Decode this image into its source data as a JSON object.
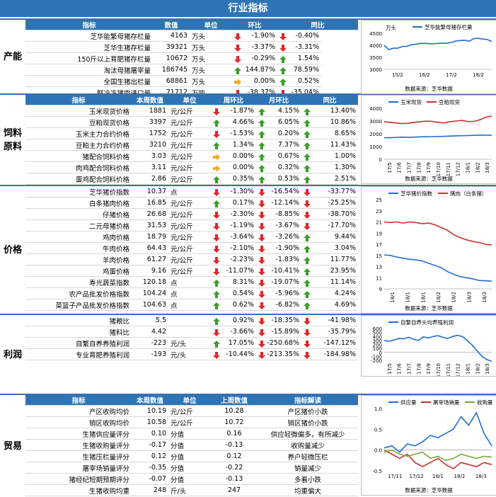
{
  "title": "行业指标",
  "sections": [
    {
      "key": "capacity",
      "label": "产能",
      "headers": [
        "指标",
        "数值",
        "单位",
        "环比",
        "同比"
      ],
      "rows": [
        {
          "name": "芝华能繁母猪存栏量",
          "value": "4163",
          "unit": "万头",
          "c1": "-1.90%",
          "a1": "down",
          "c2": "-0.40%",
          "a2": "down"
        },
        {
          "name": "芝华生猪存栏量",
          "value": "39321",
          "unit": "万头",
          "c1": "-3.37%",
          "a1": "down",
          "c2": "-3.31%",
          "a2": "down"
        },
        {
          "name": "150斤以上育肥猪存栏量",
          "value": "10672",
          "unit": "万头",
          "c1": "-0.29%",
          "a1": "down",
          "c2": "1.54%",
          "a2": "up"
        },
        {
          "name": "淘汰母猪屠宰量",
          "value": "186745",
          "unit": "万头",
          "c1": "144.87%",
          "a1": "up",
          "c2": "78.59%",
          "a2": "up"
        },
        {
          "name": "全国生猪出栏量",
          "value": "68861",
          "unit": "万头",
          "c1": "0.00%",
          "a1": "flat",
          "c2": "0.52%",
          "a2": "up"
        },
        {
          "name": "鲜冷冻猪肉进口量",
          "value": "71712",
          "unit": "万吨",
          "c1": "-38.37%",
          "a1": "down",
          "c2": "-35.04%",
          "a2": "down"
        }
      ]
    },
    {
      "key": "feed",
      "label": "饲料\n原料",
      "headers": [
        "指标",
        "本周数值",
        "单位",
        "周环比",
        "月环比",
        "同比"
      ],
      "rows": [
        {
          "name": "玉米现货价格",
          "value": "1881",
          "unit": "元/公斤",
          "c1": "-1.87%",
          "a1": "down",
          "c2": "4.15%",
          "a2": "up",
          "c3": "13.40%",
          "a3": "up"
        },
        {
          "name": "豆粕现货价格",
          "value": "3397",
          "unit": "元/公斤",
          "c1": "4.66%",
          "a1": "up",
          "c2": "6.05%",
          "a2": "up",
          "c3": "10.86%",
          "a3": "up"
        },
        {
          "name": "玉米主力合约价格",
          "value": "1752",
          "unit": "元/公斤",
          "c1": "-1.53%",
          "a1": "down",
          "c2": "0.20%",
          "a2": "up",
          "c3": "8.65%",
          "a3": "up"
        },
        {
          "name": "豆粕主力合约价格",
          "value": "3210",
          "unit": "元/公斤",
          "c1": "1.34%",
          "a1": "up",
          "c2": "7.37%",
          "a2": "up",
          "c3": "11.43%",
          "a3": "up"
        },
        {
          "name": "猪配合饲料价格",
          "value": "3.03",
          "unit": "元/公斤",
          "c1": "0.00%",
          "a1": "flat",
          "c2": "0.67%",
          "a2": "up",
          "c3": "1.00%",
          "a3": "up"
        },
        {
          "name": "肉鸡配合饲料价格",
          "value": "3.11",
          "unit": "元/公斤",
          "c1": "0.00%",
          "a1": "flat",
          "c2": "0.32%",
          "a2": "up",
          "c3": "1.30%",
          "a3": "up"
        },
        {
          "name": "蛋鸡配合饲料价格",
          "value": "2.86",
          "unit": "元/公斤",
          "c1": "0.35%",
          "a1": "up",
          "c2": "0.53%",
          "a2": "up",
          "c3": "2.51%",
          "a3": "up"
        }
      ]
    },
    {
      "key": "price",
      "label": "价格",
      "rows": [
        {
          "name": "芝华猪价指数",
          "value": "10.37",
          "unit": "点",
          "c1": "-1.30%",
          "a1": "down",
          "c2": "-16.54%",
          "a2": "down",
          "c3": "-33.77%",
          "a3": "down"
        },
        {
          "name": "白条猪肉价格",
          "value": "16.85",
          "unit": "元/公斤",
          "c1": "0.17%",
          "a1": "up",
          "c2": "-12.14%",
          "a2": "down",
          "c3": "-25.25%",
          "a3": "down"
        },
        {
          "name": "仔猪价格",
          "value": "26.68",
          "unit": "元/公斤",
          "c1": "-2.30%",
          "a1": "down",
          "c2": "-8.85%",
          "a2": "down",
          "c3": "-38.70%",
          "a3": "down"
        },
        {
          "name": "二元母猪价格",
          "value": "31.53",
          "unit": "元/公斤",
          "c1": "-1.19%",
          "a1": "down",
          "c2": "-3.67%",
          "a2": "down",
          "c3": "-17.70%",
          "a3": "down"
        },
        {
          "name": "鸡肉价格",
          "value": "18.79",
          "unit": "元/公斤",
          "c1": "-3.64%",
          "a1": "down",
          "c2": "-3.26%",
          "a2": "down",
          "c3": "9.44%",
          "a3": "up"
        },
        {
          "name": "牛肉价格",
          "value": "64.43",
          "unit": "元/公斤",
          "c1": "-2.10%",
          "a1": "down",
          "c2": "-1.90%",
          "a2": "down",
          "c3": "3.04%",
          "a3": "up"
        },
        {
          "name": "羊肉价格",
          "value": "61.27",
          "unit": "元/公斤",
          "c1": "-2.23%",
          "a1": "down",
          "c2": "-1.83%",
          "a2": "down",
          "c3": "11.77%",
          "a3": "up"
        },
        {
          "name": "鸡蛋价格",
          "value": "9.16",
          "unit": "元/公斤",
          "c1": "-11.07%",
          "a1": "down",
          "c2": "-10.41%",
          "a2": "down",
          "c3": "23.95%",
          "a3": "up"
        },
        {
          "name": "寿光蔬菜指数",
          "value": "120.18",
          "unit": "点",
          "c1": "8.31%",
          "a1": "up",
          "c2": "-19.07%",
          "a2": "down",
          "c3": "11.14%",
          "a3": "up"
        },
        {
          "name": "农产品批发价格指数",
          "value": "104.24",
          "unit": "点",
          "c1": "0.54%",
          "a1": "up",
          "c2": "-5.96%",
          "a2": "down",
          "c3": "4.24%",
          "a3": "up"
        },
        {
          "name": "菜篮子产品批发价格指数",
          "value": "104.63",
          "unit": "点",
          "c1": "0.62%",
          "a1": "up",
          "c2": "-6.82%",
          "a2": "down",
          "c3": "4.69%",
          "a3": "up"
        }
      ]
    },
    {
      "key": "profit",
      "label": "利润",
      "rows": [
        {
          "name": "猪粮比",
          "value": "5.5",
          "unit": "",
          "c1": "0.92%",
          "a1": "up",
          "c2": "-18.35%",
          "a2": "down",
          "c3": "-41.98%",
          "a3": "down"
        },
        {
          "name": "猪料比",
          "value": "4.42",
          "unit": "",
          "c1": "-3.66%",
          "a1": "down",
          "c2": "-15.89%",
          "a2": "down",
          "c3": "-35.79%",
          "a3": "down"
        },
        {
          "name": "自繁自养养殖利润",
          "value": "-223",
          "unit": "元/头",
          "c1": "17.05%",
          "a1": "up",
          "c2": "-250.68%",
          "a2": "down",
          "c3": "-147.12%",
          "a3": "down"
        },
        {
          "name": "专业育肥养殖利润",
          "value": "-193",
          "unit": "元/头",
          "c1": "-10.44%",
          "a1": "down",
          "c2": "-213.35%",
          "a2": "down",
          "c3": "-184.98%",
          "a3": "down"
        }
      ]
    },
    {
      "key": "trade",
      "label": "贸易",
      "headers": [
        "指标",
        "本周数值",
        "单位",
        "上周数值",
        "指标解读"
      ],
      "rows": [
        {
          "name": "产区收购均价",
          "value": "10.19",
          "unit": "元/公斤",
          "prev": "10.28",
          "note": "产区猪价小跌"
        },
        {
          "name": "销区收购均价",
          "value": "10.58",
          "unit": "元/公斤",
          "prev": "10.72",
          "note": "销区猪价小跌"
        },
        {
          "name": "生猪供应量评分",
          "value": "0.10",
          "unit": "分值",
          "prev": "0.16",
          "note": "供应轻微偏多，有所减少"
        },
        {
          "name": "生猪收购量评分",
          "value": "-0.17",
          "unit": "分值",
          "prev": "-0.13",
          "note": "收购量减少"
        },
        {
          "name": "生猪压栏量评分",
          "value": "0.12",
          "unit": "分值",
          "prev": "0.12",
          "note": "养户轻微压栏"
        },
        {
          "name": "屠宰场销量评分",
          "value": "-0.35",
          "unit": "分值",
          "prev": "-0.22",
          "note": "销量减少"
        },
        {
          "name": "猪经纪短期预期评分",
          "value": "-0.07",
          "unit": "分值",
          "prev": "-0.13",
          "note": "多看小跌"
        },
        {
          "name": "生猪收购均重",
          "value": "248",
          "unit": "斤/头",
          "prev": "247",
          "note": "均重偏大"
        }
      ]
    }
  ],
  "colors": {
    "header": "#2e74b5",
    "up": "#3a9d2c",
    "down": "#e0262a",
    "flat": "#f5a623",
    "blue": "#1f6ed4",
    "red": "#c9302c",
    "green": "#7aa53a"
  },
  "chart_data": [
    {
      "type": "line",
      "legend": [
        "芝华能繁母猪存栏量"
      ],
      "ylabel": "万头",
      "ylim": [
        3000,
        4500
      ],
      "yticks": [
        "3000",
        "3500",
        "4000",
        "4500"
      ],
      "xticks": [
        "15/2",
        "16/2",
        "17/2",
        "18/2"
      ],
      "source": "数据来源：芝华数据",
      "series": [
        {
          "name": "芝华能繁母猪存栏量",
          "values": [
            4000,
            3820,
            3880,
            3880,
            3950,
            3960,
            4020,
            4040,
            4080,
            4080,
            4070,
            4060,
            4080,
            4090,
            4090,
            4120,
            4180,
            4200,
            4210,
            4170,
            4280,
            4290,
            4260,
            4240,
            4163
          ]
        }
      ]
    },
    {
      "type": "line",
      "legend": [
        "玉米现货",
        "豆粕现货"
      ],
      "ylim": [
        0,
        4000
      ],
      "yticks": [
        "0",
        "1000",
        "2000",
        "3000",
        "4000"
      ],
      "xticks": [
        "17/5",
        "17/6",
        "17/7",
        "17/8",
        "17/9",
        "17/10",
        "17/11",
        "17/12",
        "18/1",
        "18/2",
        "18/3"
      ],
      "source": "数据来源：芝华数据",
      "series": [
        {
          "name": "玉米现货",
          "values": [
            1700,
            1690,
            1720,
            1740,
            1730,
            1740,
            1760,
            1770,
            1780,
            1790,
            1800,
            1820,
            1840,
            1850,
            1860,
            1880,
            1900,
            1890,
            1881
          ]
        },
        {
          "name": "豆粕现货",
          "values": [
            2950,
            2900,
            2850,
            2800,
            2820,
            2900,
            2950,
            3000,
            2980,
            2900,
            2850,
            2950,
            3000,
            3050,
            2960,
            2970,
            3100,
            3300,
            3397
          ]
        }
      ]
    },
    {
      "type": "line",
      "legend": [
        "芝华猪价指数",
        "猪肉（白条猪）"
      ],
      "ylim": [
        9,
        25
      ],
      "yticks": [
        "9",
        "11",
        "13",
        "15",
        "17",
        "19",
        "21",
        "23",
        "25"
      ],
      "xticks": [
        "18/1",
        "18/1",
        "18/1",
        "18/2",
        "18/2",
        "18/3",
        "18/3"
      ],
      "source": "数据来源：芝华数据",
      "series": [
        {
          "name": "芝华猪价指数",
          "values": [
            15.1,
            15.0,
            14.7,
            14.5,
            14.3,
            14.2,
            14.0,
            13.6,
            13.2,
            12.8,
            12.1,
            11.6,
            11.2,
            11.0,
            10.8,
            10.5,
            10.45,
            10.37
          ]
        },
        {
          "name": "猪肉（白条猪）",
          "values": [
            21.0,
            20.9,
            21.0,
            20.8,
            21.0,
            20.9,
            20.7,
            20.8,
            20.5,
            20.0,
            19.5,
            18.7,
            18.2,
            17.8,
            17.5,
            17.3,
            17.0,
            16.85
          ]
        }
      ]
    },
    {
      "type": "line",
      "legend": [
        "自繁自养头均养殖利润"
      ],
      "ylim": [
        -200,
        600
      ],
      "yticks": [
        "-200",
        "-100",
        "0",
        "100",
        "200",
        "300",
        "400",
        "500",
        "600"
      ],
      "xticks": [
        "17/5",
        "17/6",
        "17/7",
        "17/8",
        "17/9",
        "17/10",
        "17/11",
        "17/12",
        "18/1",
        "18/2",
        "18/3"
      ],
      "series": [
        {
          "name": "自繁自养头均养殖利润",
          "values": [
            300,
            280,
            310,
            350,
            340,
            380,
            330,
            300,
            390,
            360,
            400,
            420,
            380,
            350,
            400,
            430,
            400,
            300,
            180,
            40,
            -100,
            -180,
            -223
          ]
        }
      ]
    },
    {
      "type": "line",
      "legend": [
        "供应量",
        "屠宰场销量",
        "收购量"
      ],
      "ylim": [
        -0.5,
        1.0
      ],
      "yticks": [
        "-0.5",
        "0.0",
        "0.5",
        "1.0"
      ],
      "xticks": [
        "17/11",
        "17/12",
        "18/1",
        "18/2",
        "18/3"
      ],
      "source": "数据来源：芝华数据",
      "series": [
        {
          "name": "供应量",
          "values": [
            0.05,
            0.1,
            -0.05,
            0.15,
            0.1,
            0.2,
            0.35,
            0.3,
            0.4,
            0.5,
            0.8,
            0.6,
            0.9,
            0.4,
            0.1
          ]
        },
        {
          "name": "屠宰场销量",
          "values": [
            0.0,
            -0.1,
            -0.2,
            -0.1,
            -0.3,
            -0.4,
            -0.3,
            -0.2,
            -0.35,
            -0.45,
            -0.3,
            -0.35,
            -0.4,
            -0.3,
            -0.35
          ]
        },
        {
          "name": "收购量",
          "values": [
            -0.05,
            0.0,
            -0.1,
            -0.15,
            -0.1,
            -0.05,
            -0.2,
            -0.15,
            -0.25,
            -0.2,
            -0.1,
            -0.15,
            -0.2,
            -0.15,
            -0.17
          ]
        }
      ]
    }
  ]
}
